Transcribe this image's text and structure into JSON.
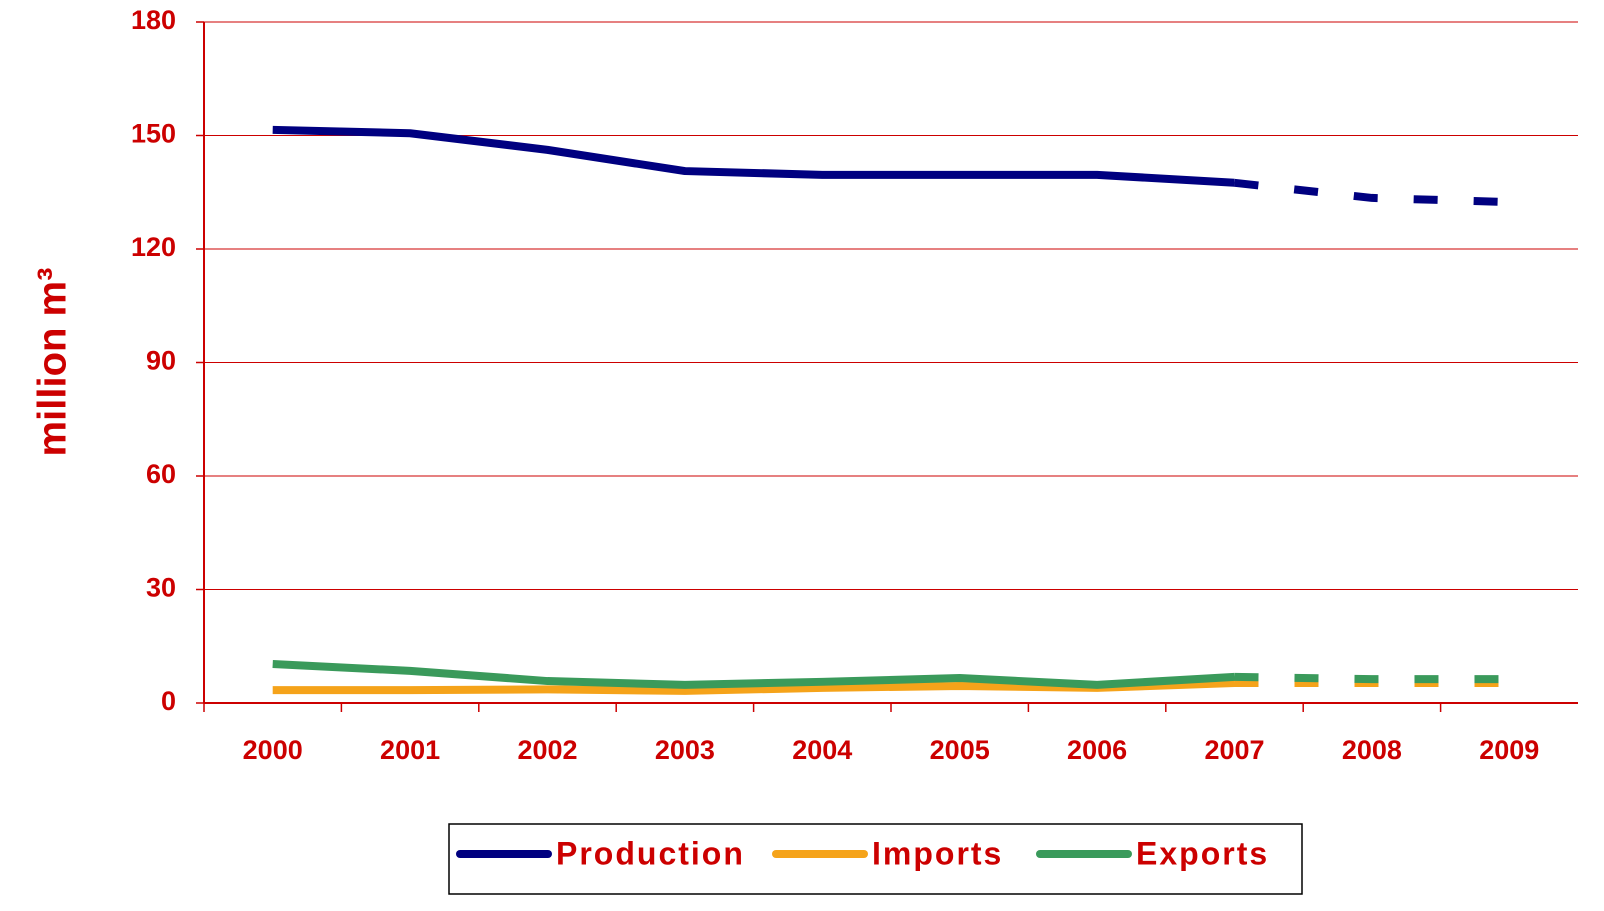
{
  "chart_data": {
    "type": "line",
    "y_label": "million m³",
    "categories": [
      "2000",
      "2001",
      "2002",
      "2003",
      "2004",
      "2005",
      "2006",
      "2007",
      "2008",
      "2009"
    ],
    "forecast_start": "2007",
    "series": [
      {
        "name": "Production",
        "color": "#000080",
        "values": [
          151.5,
          150.6,
          146.2,
          140.6,
          139.6,
          139.6,
          139.6,
          137.5,
          133.5,
          132.4
        ]
      },
      {
        "name": "Imports",
        "color": "#f5a31a",
        "values": [
          3.4,
          3.4,
          3.6,
          3.2,
          4.0,
          4.5,
          4.0,
          5.3,
          5.3,
          5.3
        ]
      },
      {
        "name": "Exports",
        "color": "#3a9a5b",
        "values": [
          10.3,
          8.5,
          5.8,
          4.8,
          5.6,
          6.6,
          4.8,
          6.9,
          6.3,
          6.3
        ]
      }
    ],
    "ylim": [
      0,
      180
    ],
    "yticks": [
      0,
      30,
      60,
      90,
      120,
      150,
      180
    ],
    "grid": true
  }
}
